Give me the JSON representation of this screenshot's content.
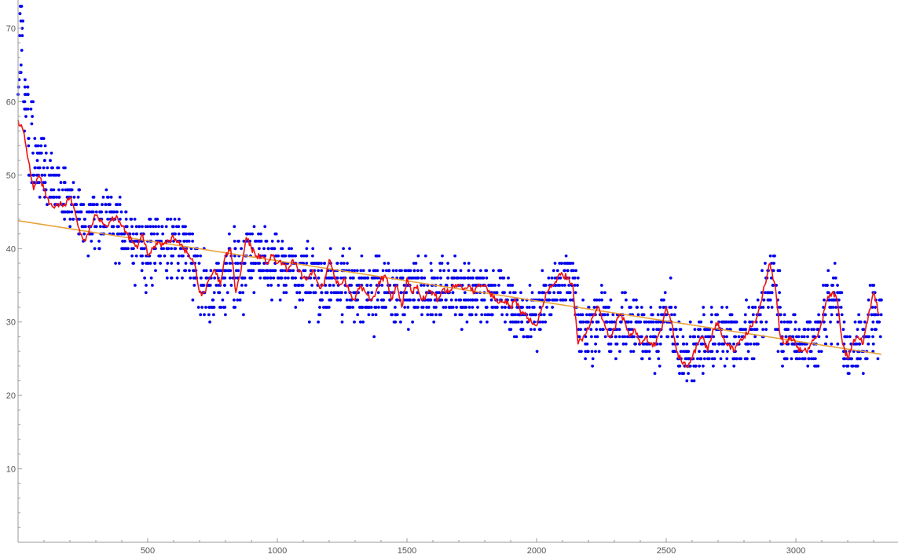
{
  "chart_data": {
    "type": "scatter",
    "title": "",
    "xlabel": "",
    "ylabel": "",
    "xlim": [
      0,
      3350
    ],
    "ylim": [
      0,
      70
    ],
    "x_ticks": [
      500,
      1000,
      1500,
      2000,
      2500,
      3000
    ],
    "y_ticks": [
      10,
      20,
      30,
      40,
      50,
      60,
      70
    ],
    "x_minor_step": 100,
    "y_minor_step": 2,
    "grid": false,
    "legend": "none",
    "colors": {
      "points": "#0000ee",
      "moving_average": "#ee1111",
      "trend": "#e8a33c",
      "axis": "#9a9a9a"
    },
    "scatter_density": [
      [
        0,
        70,
        60,
        65,
        62
      ],
      [
        20,
        60,
        54,
        58
      ],
      [
        40,
        57,
        49,
        54
      ],
      [
        60,
        55,
        49,
        51
      ],
      [
        80,
        53,
        46,
        50
      ],
      [
        100,
        51,
        45,
        49
      ],
      [
        120,
        50,
        44,
        48
      ],
      [
        140,
        49,
        44,
        47
      ],
      [
        160,
        48,
        44,
        47
      ],
      [
        180,
        48,
        43,
        49
      ],
      [
        200,
        47,
        42,
        49
      ],
      [
        220,
        46,
        40,
        48
      ],
      [
        240,
        45,
        38,
        47
      ],
      [
        260,
        45,
        38,
        46
      ],
      [
        280,
        45,
        39,
        47
      ],
      [
        300,
        44,
        40,
        46
      ],
      [
        320,
        45,
        39,
        47
      ],
      [
        340,
        45,
        39,
        48
      ],
      [
        360,
        44,
        38,
        46
      ],
      [
        380,
        44,
        37,
        46
      ],
      [
        400,
        43,
        37,
        45
      ],
      [
        420,
        42,
        36,
        44
      ],
      [
        440,
        41,
        35,
        44
      ],
      [
        460,
        41,
        35,
        44
      ],
      [
        480,
        40,
        34,
        43
      ],
      [
        500,
        41,
        35,
        44
      ],
      [
        520,
        41,
        35,
        44
      ],
      [
        540,
        41,
        35,
        44
      ],
      [
        560,
        41,
        35,
        43
      ],
      [
        580,
        41,
        35,
        43
      ],
      [
        600,
        41,
        36,
        44
      ],
      [
        620,
        41,
        36,
        44
      ],
      [
        640,
        40,
        35,
        43
      ],
      [
        660,
        39,
        33,
        42
      ],
      [
        680,
        38,
        32,
        41
      ],
      [
        700,
        36,
        30,
        40
      ],
      [
        720,
        34,
        28,
        38
      ],
      [
        740,
        34,
        29,
        38
      ],
      [
        760,
        36,
        30,
        40
      ],
      [
        780,
        35,
        29,
        39
      ],
      [
        800,
        37,
        30,
        42
      ],
      [
        820,
        38,
        31,
        43
      ],
      [
        840,
        36,
        30,
        42
      ],
      [
        860,
        36,
        31,
        42
      ],
      [
        880,
        40,
        33,
        44
      ],
      [
        900,
        40,
        34,
        44
      ],
      [
        920,
        39,
        34,
        43
      ],
      [
        940,
        39,
        34,
        43
      ],
      [
        960,
        38,
        33,
        42
      ],
      [
        980,
        38,
        33,
        42
      ],
      [
        1000,
        38,
        32,
        42
      ],
      [
        1020,
        37,
        32,
        41
      ],
      [
        1040,
        37,
        32,
        41
      ],
      [
        1060,
        37,
        31,
        42
      ],
      [
        1080,
        36,
        31,
        41
      ],
      [
        1100,
        36,
        31,
        41
      ],
      [
        1120,
        36,
        30,
        41
      ],
      [
        1140,
        36,
        30,
        41
      ],
      [
        1160,
        35,
        30,
        40
      ],
      [
        1180,
        35,
        30,
        40
      ],
      [
        1200,
        36,
        31,
        41
      ],
      [
        1220,
        36,
        31,
        41
      ],
      [
        1240,
        35,
        30,
        40
      ],
      [
        1260,
        35,
        30,
        40
      ],
      [
        1280,
        34,
        29,
        39
      ],
      [
        1300,
        34,
        29,
        39
      ],
      [
        1320,
        34,
        29,
        39
      ],
      [
        1340,
        34,
        28,
        39
      ],
      [
        1360,
        34,
        28,
        39
      ],
      [
        1380,
        34,
        28,
        40
      ],
      [
        1400,
        34,
        29,
        39
      ],
      [
        1420,
        35,
        29,
        40
      ],
      [
        1440,
        34,
        29,
        39
      ],
      [
        1460,
        34,
        29,
        39
      ],
      [
        1480,
        34,
        29,
        39
      ],
      [
        1500,
        35,
        29,
        40
      ],
      [
        1520,
        35,
        30,
        40
      ],
      [
        1540,
        34,
        29,
        39
      ],
      [
        1560,
        34,
        29,
        39
      ],
      [
        1580,
        34,
        29,
        39
      ],
      [
        1600,
        34,
        29,
        39
      ],
      [
        1620,
        34,
        29,
        39
      ],
      [
        1640,
        34,
        29,
        39
      ],
      [
        1660,
        34,
        29,
        39
      ],
      [
        1680,
        34,
        29,
        39
      ],
      [
        1700,
        34,
        29,
        38
      ],
      [
        1720,
        34,
        29,
        38
      ],
      [
        1740,
        34,
        30,
        38
      ],
      [
        1760,
        34,
        30,
        38
      ],
      [
        1780,
        34,
        30,
        38
      ],
      [
        1800,
        34,
        30,
        38
      ],
      [
        1820,
        34,
        30,
        38
      ],
      [
        1840,
        34,
        30,
        38
      ],
      [
        1860,
        33,
        29,
        37
      ],
      [
        1880,
        32,
        28,
        37
      ],
      [
        1900,
        32,
        28,
        36
      ],
      [
        1920,
        31,
        27,
        36
      ],
      [
        1940,
        31,
        27,
        36
      ],
      [
        1960,
        30,
        26,
        35
      ],
      [
        1980,
        30,
        26,
        35
      ],
      [
        2000,
        31,
        26,
        36
      ],
      [
        2020,
        33,
        28,
        37
      ],
      [
        2040,
        34,
        29,
        38
      ],
      [
        2060,
        35,
        30,
        38
      ],
      [
        2080,
        36,
        31,
        39
      ],
      [
        2100,
        36,
        32,
        39
      ],
      [
        2120,
        36,
        32,
        39
      ],
      [
        2140,
        34,
        30,
        38
      ],
      [
        2160,
        28,
        24,
        33
      ],
      [
        2180,
        28,
        24,
        33
      ],
      [
        2200,
        29,
        24,
        34
      ],
      [
        2220,
        30,
        25,
        35
      ],
      [
        2240,
        31,
        25,
        36
      ],
      [
        2260,
        30,
        25,
        35
      ],
      [
        2280,
        29,
        24,
        35
      ],
      [
        2300,
        29,
        24,
        34
      ],
      [
        2320,
        30,
        25,
        35
      ],
      [
        2340,
        30,
        25,
        35
      ],
      [
        2360,
        29,
        24,
        34
      ],
      [
        2380,
        29,
        24,
        34
      ],
      [
        2400,
        28,
        23,
        33
      ],
      [
        2420,
        28,
        23,
        33
      ],
      [
        2440,
        28,
        23,
        33
      ],
      [
        2460,
        28,
        23,
        33
      ],
      [
        2480,
        30,
        24,
        35
      ],
      [
        2500,
        31,
        25,
        36
      ],
      [
        2520,
        28,
        22,
        34
      ],
      [
        2540,
        26,
        21,
        31
      ],
      [
        2560,
        25,
        20,
        30
      ],
      [
        2580,
        25,
        20,
        30
      ],
      [
        2600,
        26,
        21,
        31
      ],
      [
        2620,
        27,
        22,
        32
      ],
      [
        2640,
        27,
        22,
        32
      ],
      [
        2660,
        28,
        23,
        33
      ],
      [
        2680,
        29,
        24,
        34
      ],
      [
        2700,
        29,
        24,
        34
      ],
      [
        2720,
        28,
        24,
        33
      ],
      [
        2740,
        28,
        24,
        33
      ],
      [
        2760,
        27,
        23,
        32
      ],
      [
        2780,
        27,
        23,
        32
      ],
      [
        2800,
        28,
        23,
        33
      ],
      [
        2820,
        29,
        24,
        34
      ],
      [
        2840,
        30,
        25,
        36
      ],
      [
        2860,
        31,
        26,
        37
      ],
      [
        2880,
        35,
        28,
        40
      ],
      [
        2900,
        36,
        29,
        41
      ],
      [
        2920,
        32,
        26,
        38
      ],
      [
        2940,
        28,
        24,
        33
      ],
      [
        2960,
        28,
        24,
        32
      ],
      [
        2980,
        28,
        24,
        32
      ],
      [
        3000,
        27,
        24,
        31
      ],
      [
        3020,
        27,
        24,
        31
      ],
      [
        3040,
        27,
        24,
        31
      ],
      [
        3060,
        27,
        24,
        31
      ],
      [
        3080,
        28,
        24,
        32
      ],
      [
        3100,
        30,
        25,
        36
      ],
      [
        3120,
        33,
        27,
        38
      ],
      [
        3140,
        34,
        28,
        39
      ],
      [
        3160,
        32,
        26,
        37
      ],
      [
        3180,
        27,
        23,
        31
      ],
      [
        3200,
        26,
        23,
        30
      ],
      [
        3220,
        27,
        23,
        31
      ],
      [
        3240,
        28,
        23,
        32
      ],
      [
        3260,
        28,
        24,
        33
      ],
      [
        3280,
        30,
        24,
        36
      ],
      [
        3300,
        32,
        25,
        38
      ],
      [
        3320,
        31,
        25,
        37
      ]
    ],
    "series": [
      {
        "kind": "moving_average",
        "x": [
          0,
          20,
          40,
          60,
          80,
          100,
          120,
          140,
          160,
          180,
          200,
          220,
          240,
          260,
          280,
          300,
          320,
          340,
          360,
          380,
          400,
          420,
          440,
          460,
          480,
          500,
          520,
          540,
          560,
          580,
          600,
          620,
          640,
          660,
          680,
          700,
          720,
          740,
          760,
          780,
          800,
          820,
          840,
          860,
          880,
          900,
          920,
          940,
          960,
          980,
          1000,
          1020,
          1040,
          1060,
          1080,
          1100,
          1120,
          1140,
          1160,
          1180,
          1200,
          1220,
          1240,
          1260,
          1280,
          1300,
          1320,
          1340,
          1360,
          1380,
          1400,
          1420,
          1440,
          1460,
          1480,
          1500,
          1520,
          1540,
          1560,
          1580,
          1600,
          1620,
          1640,
          1660,
          1680,
          1700,
          1720,
          1740,
          1760,
          1780,
          1800,
          1820,
          1840,
          1860,
          1880,
          1900,
          1920,
          1940,
          1960,
          1980,
          2000,
          2020,
          2040,
          2060,
          2080,
          2100,
          2120,
          2140,
          2160,
          2180,
          2200,
          2220,
          2240,
          2260,
          2280,
          2300,
          2320,
          2340,
          2360,
          2380,
          2400,
          2420,
          2440,
          2460,
          2480,
          2500,
          2520,
          2540,
          2560,
          2580,
          2600,
          2620,
          2640,
          2660,
          2680,
          2700,
          2720,
          2740,
          2760,
          2780,
          2800,
          2820,
          2840,
          2860,
          2880,
          2900,
          2920,
          2940,
          2960,
          2980,
          3000,
          3020,
          3040,
          3060,
          3080,
          3100,
          3120,
          3140,
          3160,
          3180,
          3200,
          3220,
          3240,
          3260,
          3280,
          3300,
          3320
        ],
        "y": [
          57.5,
          56,
          52,
          48,
          50,
          48,
          46,
          45.5,
          46,
          46,
          47,
          45,
          42,
          41,
          43,
          44.5,
          44,
          43,
          44,
          44.5,
          43,
          42,
          41,
          40,
          42,
          39,
          40,
          41,
          40.5,
          41,
          41.5,
          41,
          40,
          39,
          38,
          34,
          34,
          36,
          37,
          35,
          39,
          40,
          34,
          37,
          41.5,
          40,
          39,
          39,
          38,
          39,
          38,
          38,
          37,
          38.5,
          37,
          36,
          36,
          37,
          35,
          35,
          38.5,
          36,
          35,
          36,
          34,
          33,
          35,
          34,
          33,
          34,
          36,
          36,
          33,
          35,
          32,
          36,
          34,
          35,
          33,
          34,
          34,
          33,
          34.5,
          34,
          35,
          35,
          34.5,
          35,
          34,
          35,
          35,
          34,
          33,
          33,
          33,
          32,
          33,
          31,
          31,
          30,
          29.5,
          32,
          34,
          35,
          36,
          36.5,
          36,
          35,
          27,
          28,
          29,
          31,
          32,
          30,
          28,
          29,
          31,
          30,
          28,
          29,
          27,
          28,
          27,
          27,
          29,
          32,
          30,
          26,
          24.5,
          24,
          25,
          27,
          28,
          26,
          29,
          30,
          28,
          27,
          26,
          27,
          28,
          29,
          30,
          32,
          35,
          38,
          35,
          28,
          27,
          28,
          27,
          26,
          26,
          27,
          28,
          30,
          33,
          34,
          33,
          27,
          25,
          27,
          28,
          27,
          31,
          34,
          31
        ]
      },
      {
        "kind": "trend",
        "x": [
          0,
          3330
        ],
        "y": [
          43.8,
          25.6
        ]
      }
    ]
  }
}
